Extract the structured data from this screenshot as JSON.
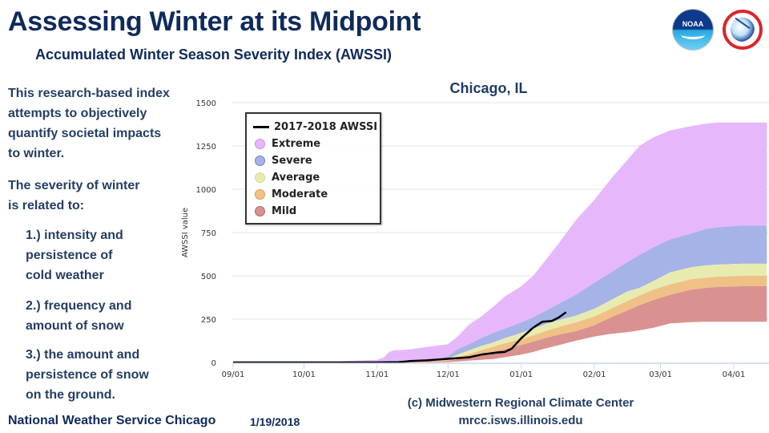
{
  "header": {
    "title": "Assessing Winter at its Midpoint",
    "subtitle": "Accumulated Winter Season Severity Index (AWSSI)",
    "logos": [
      "noaa-logo",
      "nws-logo"
    ],
    "noaa_text": "NOAA"
  },
  "left_panel": {
    "intro": [
      "This research-based index",
      "attempts to objectively",
      "quantify societal impacts",
      "to winter."
    ],
    "severity_heading": [
      "The severity of winter",
      "is related to:"
    ],
    "factors": [
      [
        "1.) intensity and",
        "persistence of",
        "cold weather"
      ],
      [
        "2.) frequency and",
        "amount of snow"
      ],
      [
        "3.) the amount and",
        "persistence of snow",
        "on the ground."
      ]
    ]
  },
  "footer": {
    "office": "National Weather Service Chicago",
    "date": "1/19/2018",
    "credit_line1": "(c) Midwestern Regional Climate Center",
    "credit_line2": "mrcc.isws.illinois.edu"
  },
  "colors": {
    "title": "#0f2a5c",
    "extreme": "#e6b8fb",
    "severe": "#a6b3e6",
    "average": "#e8ebb0",
    "moderate": "#efc186",
    "mild": "#d99290",
    "current": "#000000"
  },
  "chart_data": {
    "type": "area",
    "title": "Chicago, IL",
    "xlabel": "",
    "ylabel": "AWSSI value",
    "ylim": [
      0,
      1500
    ],
    "yticks": [
      0,
      250,
      500,
      750,
      1000,
      1250,
      1500
    ],
    "x_unit": "days since 09/01",
    "xlim": [
      0,
      226
    ],
    "xticks": [
      {
        "day": 0,
        "label": "09/01"
      },
      {
        "day": 30,
        "label": "10/01"
      },
      {
        "day": 61,
        "label": "11/01"
      },
      {
        "day": 91,
        "label": "12/01"
      },
      {
        "day": 122,
        "label": "01/01"
      },
      {
        "day": 153,
        "label": "02/01"
      },
      {
        "day": 181,
        "label": "03/01"
      },
      {
        "day": 212,
        "label": "04/01"
      }
    ],
    "grid": true,
    "legend_position": "top-left",
    "legend": [
      "2017-2018 AWSSI",
      "Extreme",
      "Severe",
      "Average",
      "Moderate",
      "Mild"
    ],
    "bands": {
      "x": [
        0,
        40,
        48,
        55,
        61,
        64,
        66,
        68,
        75,
        82,
        88,
        91,
        95,
        100,
        105,
        110,
        115,
        122,
        127,
        132,
        138,
        145,
        153,
        160,
        167,
        172,
        178,
        185,
        194,
        200,
        205,
        215,
        226
      ],
      "extreme_top": [
        0,
        0,
        8,
        12,
        15,
        30,
        60,
        70,
        75,
        90,
        100,
        105,
        150,
        220,
        265,
        320,
        380,
        440,
        500,
        585,
        690,
        820,
        940,
        1060,
        1170,
        1250,
        1300,
        1340,
        1365,
        1378,
        1385,
        1385,
        1385
      ],
      "severe_top": [
        0,
        0,
        0,
        0,
        2,
        4,
        5,
        6,
        8,
        15,
        25,
        35,
        75,
        105,
        140,
        170,
        195,
        230,
        260,
        295,
        340,
        390,
        460,
        520,
        580,
        620,
        665,
        710,
        745,
        770,
        780,
        790,
        790
      ],
      "average_top": [
        0,
        0,
        0,
        0,
        1,
        2,
        3,
        3,
        5,
        10,
        16,
        22,
        45,
        70,
        95,
        115,
        140,
        170,
        195,
        220,
        245,
        270,
        310,
        360,
        410,
        430,
        470,
        520,
        550,
        560,
        565,
        570,
        570
      ],
      "moderate_top": [
        0,
        0,
        0,
        0,
        1,
        1,
        2,
        2,
        4,
        7,
        10,
        14,
        30,
        48,
        70,
        90,
        110,
        135,
        155,
        180,
        205,
        230,
        265,
        310,
        355,
        385,
        420,
        450,
        480,
        490,
        495,
        500,
        500
      ],
      "mild_top": [
        0,
        0,
        0,
        0,
        0,
        1,
        1,
        1,
        2,
        4,
        6,
        9,
        18,
        30,
        45,
        60,
        75,
        100,
        120,
        140,
        160,
        180,
        215,
        260,
        300,
        330,
        360,
        390,
        420,
        430,
        435,
        440,
        440
      ],
      "mild_bottom": [
        0,
        0,
        0,
        0,
        0,
        0,
        0,
        0,
        0,
        0,
        1,
        2,
        5,
        10,
        15,
        20,
        30,
        45,
        60,
        80,
        100,
        125,
        150,
        165,
        175,
        185,
        200,
        225,
        233,
        235,
        235,
        235,
        235
      ]
    },
    "series": [
      {
        "name": "2017-2018 AWSSI",
        "x": [
          0,
          60,
          70,
          75,
          82,
          88,
          95,
          100,
          105,
          112,
          115,
          118,
          122,
          127,
          131,
          135,
          138,
          141
        ],
        "values": [
          0,
          0,
          2,
          8,
          12,
          18,
          25,
          30,
          45,
          58,
          60,
          80,
          140,
          200,
          235,
          240,
          260,
          290
        ]
      }
    ]
  }
}
